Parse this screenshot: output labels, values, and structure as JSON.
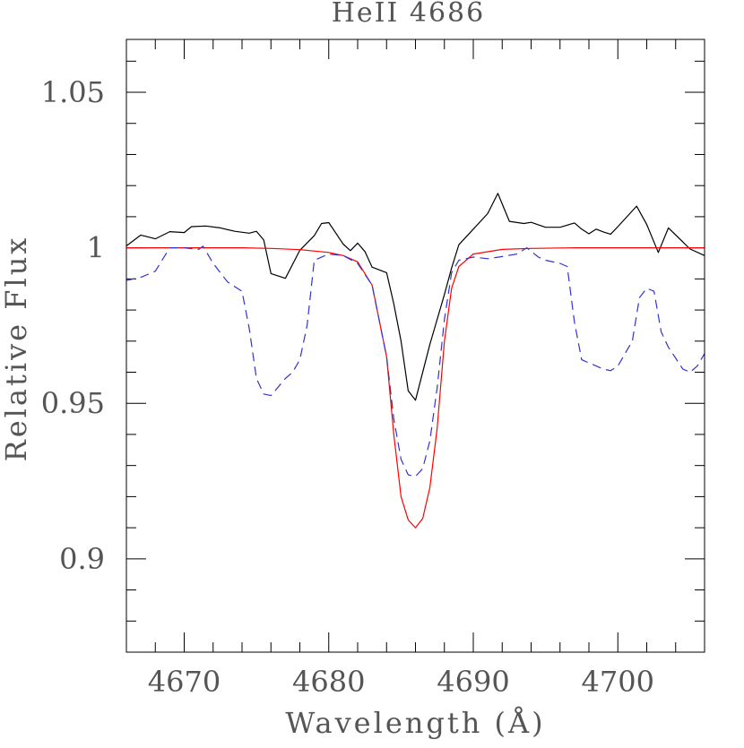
{
  "chart_data": {
    "type": "line",
    "title": "HeII 4686",
    "xlabel": "Wavelength (Å)",
    "ylabel": "Relative Flux",
    "xlim": [
      4666,
      4706
    ],
    "ylim": [
      0.87,
      1.067
    ],
    "x_ticks": [
      4670,
      4680,
      4690,
      4700
    ],
    "x_tick_labels": [
      "4670",
      "4680",
      "4690",
      "4700"
    ],
    "y_ticks": [
      0.9,
      0.95,
      1.0,
      1.05
    ],
    "y_tick_labels": [
      "0.9",
      "0.95",
      "1",
      "1.05"
    ],
    "grid": false,
    "series": [
      {
        "style": "solid",
        "color": "#000000",
        "points": [
          [
            4666.0,
            1.0006
          ],
          [
            4667.0,
            1.0041
          ],
          [
            4668.0,
            1.0029
          ],
          [
            4669.0,
            1.0052
          ],
          [
            4670.0,
            1.0049
          ],
          [
            4670.5,
            1.0068
          ],
          [
            4671.5,
            1.007
          ],
          [
            4672.5,
            1.0064
          ],
          [
            4673.5,
            1.0053
          ],
          [
            4674.5,
            1.0047
          ],
          [
            4675.0,
            1.0053
          ],
          [
            4675.5,
            1.0025
          ],
          [
            4676.0,
            0.9917
          ],
          [
            4677.0,
            0.9902
          ],
          [
            4678.0,
            0.9992
          ],
          [
            4679.0,
            1.0039
          ],
          [
            4679.5,
            1.0078
          ],
          [
            4680.0,
            1.0081
          ],
          [
            4681.0,
            1.0012
          ],
          [
            4681.5,
            0.9991
          ],
          [
            4682.0,
            1.0015
          ],
          [
            4682.5,
            0.9988
          ],
          [
            4683.0,
            0.9938
          ],
          [
            4684.0,
            0.992
          ],
          [
            4684.5,
            0.982
          ],
          [
            4685.0,
            0.97
          ],
          [
            4685.5,
            0.954
          ],
          [
            4686.0,
            0.951
          ],
          [
            4687.0,
            0.969
          ],
          [
            4688.0,
            0.985
          ],
          [
            4688.5,
            0.9935
          ],
          [
            4689.0,
            1.001
          ],
          [
            4690.0,
            1.006
          ],
          [
            4691.0,
            1.011
          ],
          [
            4691.7,
            1.0175
          ],
          [
            4692.5,
            1.0085
          ],
          [
            4693.5,
            1.0078
          ],
          [
            4694.0,
            1.0082
          ],
          [
            4695.0,
            1.0066
          ],
          [
            4696.0,
            1.0066
          ],
          [
            4697.0,
            1.008
          ],
          [
            4697.5,
            1.006
          ],
          [
            4698.0,
            1.0045
          ],
          [
            4698.5,
            1.006
          ],
          [
            4699.0,
            1.0051
          ],
          [
            4699.5,
            1.0044
          ],
          [
            4700.0,
            1.0068
          ],
          [
            4701.3,
            1.0134
          ],
          [
            4702.0,
            1.0075
          ],
          [
            4702.8,
            0.9985
          ],
          [
            4703.5,
            1.0064
          ],
          [
            4705.0,
            0.9996
          ],
          [
            4706.0,
            0.9975
          ]
        ]
      },
      {
        "style": "solid",
        "color": "#ff0000",
        "points": [
          [
            4666.0,
            1.0
          ],
          [
            4670.0,
            1.0
          ],
          [
            4674.0,
            1.0
          ],
          [
            4676.0,
            0.9998
          ],
          [
            4678.0,
            0.9994
          ],
          [
            4680.0,
            0.9985
          ],
          [
            4681.0,
            0.9975
          ],
          [
            4682.0,
            0.9955
          ],
          [
            4683.0,
            0.988
          ],
          [
            4684.0,
            0.965
          ],
          [
            4684.5,
            0.94
          ],
          [
            4685.0,
            0.92
          ],
          [
            4685.5,
            0.9125
          ],
          [
            4686.0,
            0.91
          ],
          [
            4686.5,
            0.913
          ],
          [
            4687.0,
            0.923
          ],
          [
            4687.5,
            0.942
          ],
          [
            4688.0,
            0.97
          ],
          [
            4688.5,
            0.987
          ],
          [
            4689.0,
            0.994
          ],
          [
            4690.0,
            0.998
          ],
          [
            4692.0,
            0.9995
          ],
          [
            4694.0,
            0.9998
          ],
          [
            4697.0,
            1.0
          ],
          [
            4706.0,
            1.0
          ]
        ]
      },
      {
        "style": "dashed",
        "color": "#3333cc",
        "points": [
          [
            4666.0,
            0.9895
          ],
          [
            4667.0,
            0.9905
          ],
          [
            4668.0,
            0.9925
          ],
          [
            4669.0,
            1.0
          ],
          [
            4670.0,
            1.0
          ],
          [
            4671.0,
            0.9995
          ],
          [
            4671.3,
            1.0005
          ],
          [
            4672.0,
            0.995
          ],
          [
            4673.0,
            0.989
          ],
          [
            4674.0,
            0.986
          ],
          [
            4674.5,
            0.974
          ],
          [
            4675.0,
            0.958
          ],
          [
            4675.5,
            0.953
          ],
          [
            4676.0,
            0.9525
          ],
          [
            4677.0,
            0.958
          ],
          [
            4677.5,
            0.96
          ],
          [
            4678.0,
            0.964
          ],
          [
            4678.5,
            0.975
          ],
          [
            4679.0,
            0.996
          ],
          [
            4680.0,
            0.998
          ],
          [
            4681.0,
            0.9975
          ],
          [
            4682.0,
            0.995
          ],
          [
            4683.0,
            0.988
          ],
          [
            4684.0,
            0.965
          ],
          [
            4684.5,
            0.945
          ],
          [
            4685.0,
            0.932
          ],
          [
            4685.5,
            0.927
          ],
          [
            4686.0,
            0.9265
          ],
          [
            4686.5,
            0.929
          ],
          [
            4687.0,
            0.938
          ],
          [
            4687.5,
            0.955
          ],
          [
            4688.0,
            0.977
          ],
          [
            4688.5,
            0.992
          ],
          [
            4689.0,
            0.996
          ],
          [
            4690.0,
            0.997
          ],
          [
            4691.0,
            0.9965
          ],
          [
            4692.0,
            0.9972
          ],
          [
            4693.0,
            0.998
          ],
          [
            4693.7,
            1.0
          ],
          [
            4694.5,
            0.997
          ],
          [
            4695.0,
            0.996
          ],
          [
            4696.0,
            0.995
          ],
          [
            4696.5,
            0.994
          ],
          [
            4697.0,
            0.976
          ],
          [
            4697.5,
            0.964
          ],
          [
            4698.0,
            0.963
          ],
          [
            4699.0,
            0.961
          ],
          [
            4699.5,
            0.9605
          ],
          [
            4700.0,
            0.962
          ],
          [
            4700.5,
            0.966
          ],
          [
            4701.0,
            0.97
          ],
          [
            4701.5,
            0.984
          ],
          [
            4702.0,
            0.987
          ],
          [
            4702.5,
            0.986
          ],
          [
            4703.0,
            0.973
          ],
          [
            4703.5,
            0.968
          ],
          [
            4704.5,
            0.961
          ],
          [
            4705.0,
            0.96
          ],
          [
            4705.5,
            0.962
          ],
          [
            4706.0,
            0.966
          ]
        ]
      }
    ]
  }
}
